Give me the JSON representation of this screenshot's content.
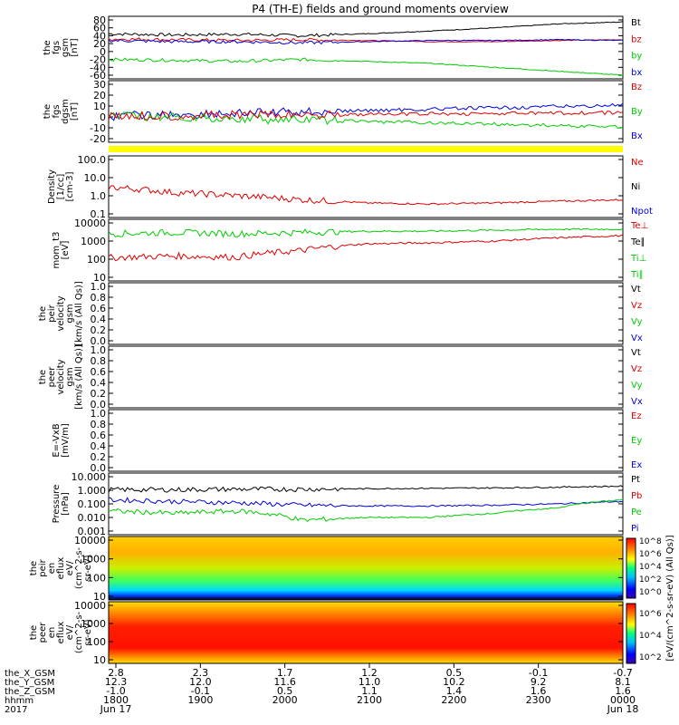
{
  "title": "P4 (TH-E) fields and ground moments overview",
  "panels": [
    {
      "id": "fgs",
      "ylabel": [
        "the",
        "fgs",
        "gsm",
        "[nT]"
      ],
      "yticks": [
        "80",
        "60",
        "40",
        "20",
        "0",
        "-20",
        "-40",
        "-60"
      ],
      "legend": [
        {
          "text": "Bt",
          "color": "#000000"
        },
        {
          "text": "bz",
          "color": "#dd0000"
        },
        {
          "text": "by",
          "color": "#00cc00"
        },
        {
          "text": "bx",
          "color": "#0000dd"
        }
      ]
    },
    {
      "id": "fgs_dgsm",
      "ylabel": [
        "the",
        "fgs",
        "dgsm",
        "[nT]"
      ],
      "yticks": [
        "30",
        "20",
        "10",
        "0",
        "-10",
        "-20"
      ],
      "legend": [
        {
          "text": "Bz",
          "color": "#dd0000"
        },
        {
          "text": "By",
          "color": "#00cc00"
        },
        {
          "text": "Bx",
          "color": "#0000dd"
        }
      ]
    },
    {
      "id": "density",
      "ylabel": [
        "Density",
        "[1/cc]",
        "[cm-3]"
      ],
      "yticks": [
        "100.0",
        "10.0",
        "1.0",
        "0.1"
      ],
      "legend": [
        {
          "text": "Ne",
          "color": "#dd0000"
        },
        {
          "text": "Ni",
          "color": "#000000"
        },
        {
          "text": "Npot",
          "color": "#0000dd"
        }
      ]
    },
    {
      "id": "temp",
      "ylabel": [
        "mom_t3",
        "[eV]"
      ],
      "yticks": [
        "10000",
        "1000",
        "100",
        "10"
      ],
      "legend": [
        {
          "text": "Te⊥",
          "color": "#dd0000"
        },
        {
          "text": "Te∥",
          "color": "#000000"
        },
        {
          "text": "Ti⊥",
          "color": "#00cc00"
        },
        {
          "text": "Ti∥",
          "color": "#00cc00"
        }
      ]
    },
    {
      "id": "peir_vel",
      "ylabel": [
        "the",
        "peir",
        "velocity",
        "gsm",
        "[km/s (All Qs)]"
      ],
      "yticks": [
        "1.0",
        "0.8",
        "0.6",
        "0.4",
        "0.2",
        "0.0"
      ],
      "legend": [
        {
          "text": "Vt",
          "color": "#000000"
        },
        {
          "text": "Vz",
          "color": "#dd0000"
        },
        {
          "text": "Vy",
          "color": "#00cc00"
        },
        {
          "text": "Vx",
          "color": "#0000dd"
        }
      ]
    },
    {
      "id": "peer_vel",
      "ylabel": [
        "the",
        "peer",
        "velocity",
        "gsm",
        "[km/s (All Qs)]"
      ],
      "yticks": [
        "1.0",
        "0.8",
        "0.6",
        "0.4",
        "0.2",
        "0.0"
      ],
      "legend": [
        {
          "text": "Vt",
          "color": "#000000"
        },
        {
          "text": "Vz",
          "color": "#dd0000"
        },
        {
          "text": "Vy",
          "color": "#00cc00"
        },
        {
          "text": "Vx",
          "color": "#0000dd"
        }
      ]
    },
    {
      "id": "efield",
      "ylabel": [
        "E=-VxB",
        "[mV/m]"
      ],
      "yticks": [
        "1.0",
        "0.8",
        "0.6",
        "0.4",
        "0.2",
        "0.0"
      ],
      "legend": [
        {
          "text": "Ez",
          "color": "#dd0000"
        },
        {
          "text": "Ey",
          "color": "#00cc00"
        },
        {
          "text": "Ex",
          "color": "#0000dd"
        }
      ]
    },
    {
      "id": "pressure",
      "ylabel": [
        "Pressure",
        "[nPa]"
      ],
      "yticks": [
        "10.000",
        "1.000",
        "0.100",
        "0.010",
        "0.001"
      ],
      "legend": [
        {
          "text": "Pt",
          "color": "#000000"
        },
        {
          "text": "Pb",
          "color": "#dd0000"
        },
        {
          "text": "Pe",
          "color": "#00cc00"
        },
        {
          "text": "Pi",
          "color": "#0000dd"
        }
      ]
    },
    {
      "id": "peir_eflux",
      "ylabel": [
        "the",
        "peir",
        "en",
        "eflux",
        "eV/",
        "(cm^2-s-",
        "sr-eV)"
      ],
      "yticks": [
        "10000",
        "1000",
        "100",
        "10"
      ],
      "legend": []
    },
    {
      "id": "peer_eflux",
      "ylabel": [
        "the",
        "peer",
        "en",
        "eflux",
        "eV/",
        "(cm^2-s-",
        "sr-eV)"
      ],
      "yticks": [
        "10000",
        "1000",
        "100",
        "10"
      ],
      "legend": []
    }
  ],
  "colorbar": {
    "label": "[eV/(cm^2-s-sr-eV) (All Qs)]",
    "ticks": [
      "10^8",
      "10^6",
      "10^4",
      "10^2",
      "10^0"
    ],
    "ticks_lower": [
      "10^6",
      "10^4",
      "10^2"
    ]
  },
  "x_axis": {
    "row_labels": [
      "the_X_GSM",
      "the_Y_GSM",
      "the_Z_GSM",
      "hhmm",
      "2017"
    ],
    "columns": [
      {
        "x": "2.8",
        "y": "12.3",
        "z": "-1.0",
        "hhmm": "1800",
        "date": "Jun 17"
      },
      {
        "x": "2.3",
        "y": "12.0",
        "z": "-0.1",
        "hhmm": "1900",
        "date": ""
      },
      {
        "x": "1.7",
        "y": "11.6",
        "z": "0.5",
        "hhmm": "2000",
        "date": ""
      },
      {
        "x": "1.2",
        "y": "11.0",
        "z": "1.1",
        "hhmm": "2100",
        "date": ""
      },
      {
        "x": "0.5",
        "y": "10.2",
        "z": "1.4",
        "hhmm": "2200",
        "date": ""
      },
      {
        "x": "-0.1",
        "y": "9.2",
        "z": "1.6",
        "hhmm": "2300",
        "date": ""
      },
      {
        "x": "-0.7",
        "y": "8.1",
        "z": "1.6",
        "hhmm": "0000",
        "date": "Jun 18"
      }
    ]
  },
  "chart_data": {
    "type": "line",
    "title": "P4 (TH-E) fields and ground moments overview",
    "x_range": [
      "2017-06-17 18:00",
      "2017-06-18 00:00"
    ],
    "series": [
      {
        "panel": "fgs",
        "name": "Bt",
        "values_approx": [
          45,
          42,
          44,
          40,
          45,
          52,
          60,
          70,
          75
        ],
        "color": "#000000"
      },
      {
        "panel": "fgs",
        "name": "bz",
        "values_approx": [
          32,
          30,
          28,
          30,
          28,
          25,
          25,
          28,
          30
        ],
        "color": "#dd0000"
      },
      {
        "panel": "fgs",
        "name": "by",
        "values_approx": [
          -20,
          -22,
          -25,
          -20,
          -25,
          -30,
          -40,
          -50,
          -60
        ],
        "color": "#00cc00"
      },
      {
        "panel": "fgs",
        "name": "bx",
        "values_approx": [
          28,
          25,
          25,
          22,
          25,
          28,
          28,
          30,
          28
        ],
        "color": "#0000dd"
      },
      {
        "panel": "density",
        "name": "Ne",
        "values_approx": [
          3,
          1.5,
          1.0,
          0.6,
          0.4,
          0.35,
          0.4,
          0.5,
          0.6
        ]
      },
      {
        "panel": "temp",
        "name": "Ti",
        "values_approx": [
          2500,
          3000,
          2500,
          3000,
          3500,
          3500,
          4000,
          4500,
          4500
        ]
      },
      {
        "panel": "temp",
        "name": "Te",
        "values_approx": [
          120,
          150,
          130,
          300,
          700,
          800,
          1000,
          1500,
          2000
        ]
      },
      {
        "panel": "pressure",
        "name": "Pt",
        "values_approx": [
          1.1,
          1.1,
          1.2,
          1.2,
          1.3,
          1.4,
          1.5,
          1.7,
          2.0
        ]
      },
      {
        "panel": "pressure",
        "name": "Pi",
        "values_approx": [
          0.2,
          0.15,
          0.12,
          0.08,
          0.07,
          0.07,
          0.08,
          0.1,
          0.15
        ]
      },
      {
        "panel": "pressure",
        "name": "Pe",
        "values_approx": [
          0.03,
          0.02,
          0.03,
          0.006,
          0.01,
          0.01,
          0.02,
          0.05,
          0.2
        ]
      }
    ]
  }
}
